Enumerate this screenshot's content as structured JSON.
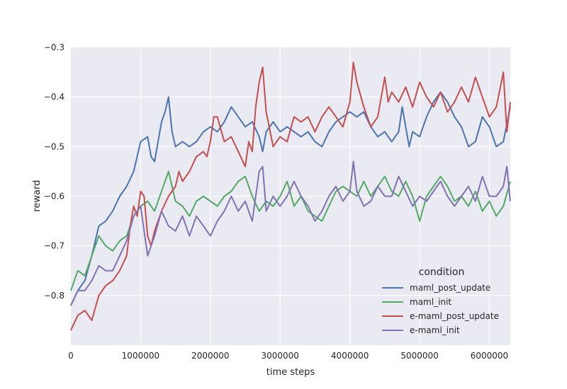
{
  "chart_data": {
    "type": "line",
    "title": "",
    "xlabel": "time steps",
    "ylabel": "reward",
    "xlim": [
      0,
      6300000
    ],
    "ylim": [
      -0.9,
      -0.3
    ],
    "xticks": [
      0,
      1000000,
      2000000,
      3000000,
      4000000,
      5000000,
      6000000
    ],
    "xtick_labels": [
      "0",
      "1000000",
      "2000000",
      "3000000",
      "4000000",
      "5000000",
      "6000000"
    ],
    "yticks": [
      -0.8,
      -0.7,
      -0.6,
      -0.5,
      -0.4,
      -0.3
    ],
    "ytick_labels": [
      "−0.8",
      "−0.7",
      "−0.6",
      "−0.5",
      "−0.4",
      "−0.3"
    ],
    "grid": true,
    "background": "#eaeaf2",
    "legend": {
      "title": "condition",
      "placement": "bottom-right"
    },
    "series": [
      {
        "name": "maml_post_update",
        "color": "#4c72b0",
        "points": [
          [
            0,
            -0.82
          ],
          [
            100000,
            -0.79
          ],
          [
            200000,
            -0.77
          ],
          [
            300000,
            -0.72
          ],
          [
            400000,
            -0.66
          ],
          [
            500000,
            -0.65
          ],
          [
            600000,
            -0.63
          ],
          [
            700000,
            -0.6
          ],
          [
            800000,
            -0.58
          ],
          [
            900000,
            -0.55
          ],
          [
            1000000,
            -0.49
          ],
          [
            1100000,
            -0.48
          ],
          [
            1150000,
            -0.52
          ],
          [
            1200000,
            -0.53
          ],
          [
            1300000,
            -0.45
          ],
          [
            1350000,
            -0.43
          ],
          [
            1400000,
            -0.4
          ],
          [
            1450000,
            -0.47
          ],
          [
            1500000,
            -0.5
          ],
          [
            1600000,
            -0.49
          ],
          [
            1700000,
            -0.5
          ],
          [
            1800000,
            -0.49
          ],
          [
            1900000,
            -0.47
          ],
          [
            2000000,
            -0.46
          ],
          [
            2100000,
            -0.47
          ],
          [
            2200000,
            -0.45
          ],
          [
            2300000,
            -0.42
          ],
          [
            2400000,
            -0.44
          ],
          [
            2500000,
            -0.46
          ],
          [
            2600000,
            -0.45
          ],
          [
            2700000,
            -0.48
          ],
          [
            2750000,
            -0.51
          ],
          [
            2800000,
            -0.47
          ],
          [
            2900000,
            -0.45
          ],
          [
            3000000,
            -0.47
          ],
          [
            3100000,
            -0.46
          ],
          [
            3200000,
            -0.47
          ],
          [
            3300000,
            -0.48
          ],
          [
            3400000,
            -0.47
          ],
          [
            3500000,
            -0.49
          ],
          [
            3600000,
            -0.5
          ],
          [
            3700000,
            -0.47
          ],
          [
            3800000,
            -0.45
          ],
          [
            3900000,
            -0.44
          ],
          [
            4000000,
            -0.43
          ],
          [
            4100000,
            -0.44
          ],
          [
            4200000,
            -0.43
          ],
          [
            4300000,
            -0.46
          ],
          [
            4400000,
            -0.48
          ],
          [
            4500000,
            -0.47
          ],
          [
            4600000,
            -0.49
          ],
          [
            4700000,
            -0.47
          ],
          [
            4750000,
            -0.42
          ],
          [
            4800000,
            -0.46
          ],
          [
            4850000,
            -0.5
          ],
          [
            4900000,
            -0.47
          ],
          [
            5000000,
            -0.48
          ],
          [
            5100000,
            -0.44
          ],
          [
            5200000,
            -0.41
          ],
          [
            5300000,
            -0.39
          ],
          [
            5400000,
            -0.41
          ],
          [
            5500000,
            -0.44
          ],
          [
            5600000,
            -0.46
          ],
          [
            5700000,
            -0.5
          ],
          [
            5800000,
            -0.49
          ],
          [
            5900000,
            -0.44
          ],
          [
            6000000,
            -0.46
          ],
          [
            6100000,
            -0.5
          ],
          [
            6200000,
            -0.49
          ],
          [
            6300000,
            -0.42
          ]
        ]
      },
      {
        "name": "maml_init",
        "color": "#55a868",
        "points": [
          [
            0,
            -0.79
          ],
          [
            100000,
            -0.75
          ],
          [
            200000,
            -0.76
          ],
          [
            300000,
            -0.72
          ],
          [
            400000,
            -0.68
          ],
          [
            500000,
            -0.7
          ],
          [
            600000,
            -0.71
          ],
          [
            700000,
            -0.69
          ],
          [
            800000,
            -0.68
          ],
          [
            900000,
            -0.64
          ],
          [
            1000000,
            -0.62
          ],
          [
            1100000,
            -0.61
          ],
          [
            1200000,
            -0.63
          ],
          [
            1300000,
            -0.59
          ],
          [
            1400000,
            -0.55
          ],
          [
            1500000,
            -0.61
          ],
          [
            1600000,
            -0.62
          ],
          [
            1700000,
            -0.64
          ],
          [
            1800000,
            -0.61
          ],
          [
            1900000,
            -0.6
          ],
          [
            2000000,
            -0.61
          ],
          [
            2100000,
            -0.62
          ],
          [
            2200000,
            -0.6
          ],
          [
            2300000,
            -0.59
          ],
          [
            2400000,
            -0.57
          ],
          [
            2500000,
            -0.56
          ],
          [
            2600000,
            -0.6
          ],
          [
            2700000,
            -0.63
          ],
          [
            2800000,
            -0.61
          ],
          [
            2900000,
            -0.62
          ],
          [
            3000000,
            -0.6
          ],
          [
            3100000,
            -0.57
          ],
          [
            3200000,
            -0.62
          ],
          [
            3300000,
            -0.6
          ],
          [
            3400000,
            -0.63
          ],
          [
            3500000,
            -0.64
          ],
          [
            3600000,
            -0.65
          ],
          [
            3700000,
            -0.62
          ],
          [
            3800000,
            -0.59
          ],
          [
            3900000,
            -0.58
          ],
          [
            4000000,
            -0.59
          ],
          [
            4100000,
            -0.6
          ],
          [
            4200000,
            -0.57
          ],
          [
            4300000,
            -0.6
          ],
          [
            4400000,
            -0.58
          ],
          [
            4500000,
            -0.56
          ],
          [
            4600000,
            -0.59
          ],
          [
            4700000,
            -0.6
          ],
          [
            4800000,
            -0.57
          ],
          [
            4900000,
            -0.6
          ],
          [
            5000000,
            -0.65
          ],
          [
            5100000,
            -0.6
          ],
          [
            5200000,
            -0.58
          ],
          [
            5300000,
            -0.56
          ],
          [
            5400000,
            -0.58
          ],
          [
            5500000,
            -0.61
          ],
          [
            5600000,
            -0.6
          ],
          [
            5700000,
            -0.62
          ],
          [
            5800000,
            -0.59
          ],
          [
            5900000,
            -0.63
          ],
          [
            6000000,
            -0.61
          ],
          [
            6100000,
            -0.64
          ],
          [
            6200000,
            -0.62
          ],
          [
            6300000,
            -0.57
          ]
        ]
      },
      {
        "name": "e-maml_post_update",
        "color": "#c44e52",
        "points": [
          [
            0,
            -0.87
          ],
          [
            100000,
            -0.84
          ],
          [
            200000,
            -0.83
          ],
          [
            250000,
            -0.84
          ],
          [
            300000,
            -0.85
          ],
          [
            400000,
            -0.8
          ],
          [
            500000,
            -0.78
          ],
          [
            600000,
            -0.77
          ],
          [
            700000,
            -0.75
          ],
          [
            800000,
            -0.72
          ],
          [
            850000,
            -0.66
          ],
          [
            900000,
            -0.62
          ],
          [
            950000,
            -0.64
          ],
          [
            1000000,
            -0.59
          ],
          [
            1050000,
            -0.6
          ],
          [
            1100000,
            -0.68
          ],
          [
            1150000,
            -0.7
          ],
          [
            1200000,
            -0.67
          ],
          [
            1300000,
            -0.63
          ],
          [
            1400000,
            -0.6
          ],
          [
            1500000,
            -0.58
          ],
          [
            1550000,
            -0.55
          ],
          [
            1600000,
            -0.57
          ],
          [
            1700000,
            -0.55
          ],
          [
            1800000,
            -0.52
          ],
          [
            1900000,
            -0.51
          ],
          [
            1950000,
            -0.52
          ],
          [
            2000000,
            -0.49
          ],
          [
            2050000,
            -0.44
          ],
          [
            2100000,
            -0.44
          ],
          [
            2200000,
            -0.49
          ],
          [
            2300000,
            -0.48
          ],
          [
            2400000,
            -0.51
          ],
          [
            2500000,
            -0.54
          ],
          [
            2550000,
            -0.49
          ],
          [
            2600000,
            -0.51
          ],
          [
            2650000,
            -0.42
          ],
          [
            2700000,
            -0.37
          ],
          [
            2750000,
            -0.34
          ],
          [
            2800000,
            -0.43
          ],
          [
            2900000,
            -0.5
          ],
          [
            3000000,
            -0.48
          ],
          [
            3100000,
            -0.49
          ],
          [
            3200000,
            -0.44
          ],
          [
            3300000,
            -0.45
          ],
          [
            3400000,
            -0.44
          ],
          [
            3500000,
            -0.47
          ],
          [
            3600000,
            -0.44
          ],
          [
            3700000,
            -0.42
          ],
          [
            3800000,
            -0.44
          ],
          [
            3900000,
            -0.46
          ],
          [
            4000000,
            -0.41
          ],
          [
            4050000,
            -0.33
          ],
          [
            4100000,
            -0.37
          ],
          [
            4200000,
            -0.42
          ],
          [
            4300000,
            -0.46
          ],
          [
            4400000,
            -0.44
          ],
          [
            4500000,
            -0.36
          ],
          [
            4550000,
            -0.41
          ],
          [
            4600000,
            -0.39
          ],
          [
            4700000,
            -0.41
          ],
          [
            4800000,
            -0.38
          ],
          [
            4900000,
            -0.42
          ],
          [
            5000000,
            -0.37
          ],
          [
            5100000,
            -0.4
          ],
          [
            5200000,
            -0.42
          ],
          [
            5300000,
            -0.39
          ],
          [
            5400000,
            -0.43
          ],
          [
            5500000,
            -0.41
          ],
          [
            5600000,
            -0.38
          ],
          [
            5700000,
            -0.41
          ],
          [
            5800000,
            -0.36
          ],
          [
            5900000,
            -0.4
          ],
          [
            6000000,
            -0.44
          ],
          [
            6100000,
            -0.42
          ],
          [
            6200000,
            -0.35
          ],
          [
            6250000,
            -0.47
          ],
          [
            6300000,
            -0.41
          ]
        ]
      },
      {
        "name": "e-maml_init",
        "color": "#8172b2",
        "points": [
          [
            0,
            -0.82
          ],
          [
            100000,
            -0.79
          ],
          [
            200000,
            -0.79
          ],
          [
            300000,
            -0.77
          ],
          [
            400000,
            -0.74
          ],
          [
            500000,
            -0.75
          ],
          [
            600000,
            -0.75
          ],
          [
            700000,
            -0.72
          ],
          [
            800000,
            -0.69
          ],
          [
            900000,
            -0.64
          ],
          [
            1000000,
            -0.62
          ],
          [
            1100000,
            -0.72
          ],
          [
            1200000,
            -0.68
          ],
          [
            1300000,
            -0.63
          ],
          [
            1400000,
            -0.66
          ],
          [
            1500000,
            -0.67
          ],
          [
            1600000,
            -0.64
          ],
          [
            1700000,
            -0.68
          ],
          [
            1800000,
            -0.64
          ],
          [
            1900000,
            -0.66
          ],
          [
            2000000,
            -0.68
          ],
          [
            2100000,
            -0.65
          ],
          [
            2200000,
            -0.63
          ],
          [
            2300000,
            -0.6
          ],
          [
            2400000,
            -0.63
          ],
          [
            2500000,
            -0.61
          ],
          [
            2600000,
            -0.65
          ],
          [
            2700000,
            -0.55
          ],
          [
            2750000,
            -0.54
          ],
          [
            2800000,
            -0.63
          ],
          [
            2900000,
            -0.6
          ],
          [
            3000000,
            -0.62
          ],
          [
            3100000,
            -0.6
          ],
          [
            3200000,
            -0.57
          ],
          [
            3300000,
            -0.6
          ],
          [
            3400000,
            -0.62
          ],
          [
            3500000,
            -0.65
          ],
          [
            3600000,
            -0.63
          ],
          [
            3700000,
            -0.6
          ],
          [
            3800000,
            -0.58
          ],
          [
            3900000,
            -0.61
          ],
          [
            4000000,
            -0.59
          ],
          [
            4050000,
            -0.53
          ],
          [
            4100000,
            -0.59
          ],
          [
            4200000,
            -0.62
          ],
          [
            4300000,
            -0.61
          ],
          [
            4400000,
            -0.58
          ],
          [
            4500000,
            -0.6
          ],
          [
            4600000,
            -0.6
          ],
          [
            4700000,
            -0.56
          ],
          [
            4800000,
            -0.59
          ],
          [
            4900000,
            -0.62
          ],
          [
            5000000,
            -0.6
          ],
          [
            5100000,
            -0.61
          ],
          [
            5200000,
            -0.59
          ],
          [
            5300000,
            -0.57
          ],
          [
            5400000,
            -0.6
          ],
          [
            5500000,
            -0.62
          ],
          [
            5600000,
            -0.6
          ],
          [
            5700000,
            -0.58
          ],
          [
            5800000,
            -0.61
          ],
          [
            5900000,
            -0.56
          ],
          [
            6000000,
            -0.6
          ],
          [
            6100000,
            -0.6
          ],
          [
            6200000,
            -0.58
          ],
          [
            6250000,
            -0.54
          ],
          [
            6300000,
            -0.61
          ]
        ]
      }
    ]
  }
}
